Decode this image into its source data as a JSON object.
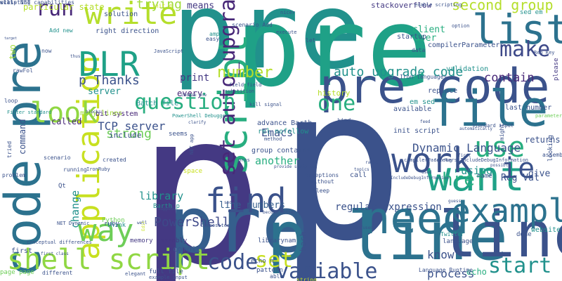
{
  "words": [
    {
      "text": "p",
      "color": "#443983"
    },
    {
      "text": "p",
      "color": "#3b528b"
    },
    {
      "text": "pre",
      "color": "#21918c"
    },
    {
      "text": "pre",
      "color": "#1fa187"
    },
    {
      "text": "pre code",
      "color": "#3b528b"
    },
    {
      "text": "code pre",
      "color": "#2c728e"
    },
    {
      "text": "pre",
      "color": "#355f8d"
    },
    {
      "text": "p line",
      "color": "#2c728e"
    },
    {
      "text": "line",
      "color": "#3b528b"
    },
    {
      "text": "script",
      "color": "#28ae80"
    },
    {
      "text": "file",
      "color": "#2c728e"
    },
    {
      "text": "want",
      "color": "#1fa187"
    },
    {
      "text": "application",
      "color": "#c8e020"
    },
    {
      "text": "need",
      "color": "#2c728e"
    },
    {
      "text": "work",
      "color": "#3b528b"
    },
    {
      "text": "example",
      "color": "#2c728e"
    },
    {
      "text": "list",
      "color": "#2c728e"
    },
    {
      "text": "DLR",
      "color": "#1fa187"
    },
    {
      "text": "write",
      "color": "#b5de2b"
    },
    {
      "text": "find",
      "color": "#3b528b"
    },
    {
      "text": "use",
      "color": "#28ae80"
    },
    {
      "text": "one",
      "color": "#28ae80"
    },
    {
      "text": "way",
      "color": "#6ece58"
    },
    {
      "text": "look",
      "color": "#90d743"
    },
    {
      "text": "shell script",
      "color": "#90d743"
    },
    {
      "text": "set auto_upgrade",
      "color": "#482878"
    },
    {
      "text": "question",
      "color": "#28ae80"
    },
    {
      "text": "make",
      "color": "#3e4989"
    },
    {
      "text": "run",
      "color": "#482878"
    },
    {
      "text": "code",
      "color": "#3b528b"
    },
    {
      "text": "set",
      "color": "#c8e020"
    },
    {
      "text": "variable",
      "color": "#3b528b"
    },
    {
      "text": "start",
      "color": "#21918c"
    },
    {
      "text": "ie",
      "color": "#3b528b"
    },
    {
      "text": "href",
      "color": "#28ae80"
    },
    {
      "text": "number",
      "color": "#b5de2b"
    },
    {
      "text": "auto_upgrade code",
      "color": "#21918c"
    },
    {
      "text": "second group",
      "color": "#b5de2b"
    },
    {
      "text": "p Thanks",
      "color": "#3b528b"
    },
    {
      "text": "trying",
      "color": "#a0da39"
    },
    {
      "text": "PowerShell",
      "color": "#3e4989"
    },
    {
      "text": "know",
      "color": "#3b528b"
    },
    {
      "text": "strong",
      "color": "#6ece58"
    },
    {
      "text": "contain",
      "color": "#482878"
    },
    {
      "text": "TCP server",
      "color": "#3b528b"
    },
    {
      "text": "Emacs",
      "color": "#3b528b"
    },
    {
      "text": "Dynamic Language",
      "color": "#3b528b"
    },
    {
      "text": "regular expression",
      "color": "#3b528b"
    },
    {
      "text": "line numbers",
      "color": "#355f8d"
    },
    {
      "text": "another",
      "color": "#28ae80"
    },
    {
      "text": "using",
      "color": "#21918c"
    },
    {
      "text": "library",
      "color": "#21918c"
    },
    {
      "text": "change",
      "color": "#21918c"
    },
    {
      "text": "print",
      "color": "#443983"
    },
    {
      "text": "means",
      "color": "#443983"
    },
    {
      "text": "client",
      "color": "#28ae80"
    },
    {
      "text": "user",
      "color": "#28ae80"
    },
    {
      "text": "stackoverflow",
      "color": "#443983"
    },
    {
      "text": "Reg Val",
      "color": "#3b528b"
    },
    {
      "text": "give",
      "color": "#3b528b"
    },
    {
      "text": "returns",
      "color": "#3b528b"
    },
    {
      "text": "compile",
      "color": "#3b528b"
    },
    {
      "text": "process",
      "color": "#3b528b"
    },
    {
      "text": "echo",
      "color": "#28ae80"
    },
    {
      "text": "bash",
      "color": "#3b528b"
    },
    {
      "text": "solution",
      "color": "#3b528b"
    },
    {
      "text": "right direction",
      "color": "#3b528b"
    },
    {
      "text": "particular state",
      "color": "#b5de2b"
    },
    {
      "text": "two",
      "color": "#a0da39"
    },
    {
      "text": "server",
      "color": "#21918c"
    },
    {
      "text": "every",
      "color": "#482878"
    },
    {
      "text": "include",
      "color": "#3b528b"
    },
    {
      "text": "called",
      "color": "#482878"
    },
    {
      "text": "command",
      "color": "#3b528b"
    },
    {
      "text": "bit system",
      "color": "#482878"
    },
    {
      "text": "Batch file",
      "color": "#21918c"
    },
    {
      "text": "many lines",
      "color": "#a0da39"
    },
    {
      "text": "history",
      "color": "#b5de2b"
    },
    {
      "text": "replace",
      "color": "#3b528b"
    },
    {
      "text": "em sed",
      "color": "#21918c"
    },
    {
      "text": "available",
      "color": "#3b528b"
    },
    {
      "text": "last number",
      "color": "#3b528b"
    },
    {
      "text": "validation",
      "color": "#21918c"
    },
    {
      "text": "compilerParameters",
      "color": "#3b528b"
    },
    {
      "text": "init script",
      "color": "#3b528b"
    },
    {
      "text": "data",
      "color": "#3b528b"
    },
    {
      "text": "startup",
      "color": "#3b528b"
    },
    {
      "text": "group contains",
      "color": "#3b528b"
    },
    {
      "text": "call",
      "color": "#3b528b"
    },
    {
      "text": "rel nofollow",
      "color": "#21918c"
    },
    {
      "text": "advance Barth",
      "color": "#3b528b"
    },
    {
      "text": "seems",
      "color": "#3b528b"
    },
    {
      "text": "space",
      "color": "#c8e020"
    },
    {
      "text": "Barth p",
      "color": "#21918c"
    },
    {
      "text": "memory assembly",
      "color": "#443983"
    },
    {
      "text": "think",
      "color": "#21918c"
    },
    {
      "text": "ruby",
      "color": "#3b528b"
    },
    {
      "text": "Qt",
      "color": "#3b528b"
    },
    {
      "text": "Python",
      "color": "#6ece58"
    },
    {
      "text": "first",
      "color": "#3b528b"
    },
    {
      "text": "full file",
      "color": "#3b528b"
    },
    {
      "text": "echo n",
      "color": "#3b528b"
    },
    {
      "text": "pattern",
      "color": "#3b528b"
    },
    {
      "text": "librarynam",
      "color": "#3b528b"
    },
    {
      "text": "language",
      "color": "#3b528b"
    },
    {
      "text": "name",
      "color": "#3b528b"
    },
    {
      "text": "done",
      "color": "#3b528b"
    },
    {
      "text": "website",
      "color": "#21918c"
    },
    {
      "text": "please",
      "color": "#443983"
    },
    {
      "text": "looking",
      "color": "#3b528b"
    },
    {
      "text": "Add new",
      "color": "#21918c"
    },
    {
      "text": "scenario Add",
      "color": "#3b528b"
    },
    {
      "text": "easy",
      "color": "#3b528b"
    },
    {
      "text": "amp",
      "color": "#21918c"
    },
    {
      "text": "without",
      "color": "#3b528b"
    },
    {
      "text": "exceptions",
      "color": "#3b528b"
    },
    {
      "text": "sleep",
      "color": "#3b528b"
    },
    {
      "text": "created",
      "color": "#3b528b"
    },
    {
      "text": "running",
      "color": "#3b528b"
    },
    {
      "text": "scenario",
      "color": "#3b528b"
    },
    {
      "text": "now",
      "color": "#3b528b"
    },
    {
      "text": "rawFol",
      "color": "#3b528b"
    },
    {
      "text": "loop",
      "color": "#3b528b"
    },
    {
      "text": "problem",
      "color": "#3b528b"
    },
    {
      "text": "tried",
      "color": "#3b528b"
    },
    {
      "text": "page page",
      "color": "#6ece58"
    },
    {
      "text": "different",
      "color": "#3b528b"
    },
    {
      "text": "elegant",
      "color": "#3b528b"
    },
    {
      "text": "example input",
      "color": "#3b528b"
    },
    {
      "text": "able",
      "color": "#3b528b"
    },
    {
      "text": "string",
      "color": "#c8e020"
    },
    {
      "text": "kind",
      "color": "#3b528b"
    },
    {
      "text": "Twitter",
      "color": "#21918c"
    },
    {
      "text": "Language Runtime",
      "color": "#3b528b"
    },
    {
      "text": "might",
      "color": "#3b528b"
    },
    {
      "text": "nicer",
      "color": "#3b528b"
    },
    {
      "text": "enable scripting",
      "color": "#3b528b"
    },
    {
      "text": "sed em",
      "color": "#21918c"
    },
    {
      "text": "Reg Key",
      "color": "#3b528b"
    },
    {
      "text": "let",
      "color": "#3b528b"
    },
    {
      "text": "init d",
      "color": "#c8e020"
    },
    {
      "text": "Iron languages",
      "color": "#3b528b"
    },
    {
      "text": "JavaScript",
      "color": "#3b528b"
    },
    {
      "text": "substition",
      "color": "#3b528b"
    },
    {
      "text": "field field",
      "color": "#3b528b"
    },
    {
      "text": "kill signal",
      "color": "#3b528b"
    },
    {
      "text": "PowerShell Debugger",
      "color": "#21918c"
    },
    {
      "text": "Filter standard",
      "color": "#21918c"
    },
    {
      "text": "conceptual differences",
      "color": "#3b528b"
    },
    {
      "text": "first class",
      "color": "#3b528b"
    },
    {
      "text": "NET Dynamic",
      "color": "#3b528b"
    },
    {
      "text": "IronRuby",
      "color": "#3b528b"
    },
    {
      "text": "provide scripting",
      "color": "#3b528b"
    },
    {
      "text": "IncludeDebugInformation",
      "color": "#3b528b"
    },
    {
      "text": "compilerParameters IncludeDebugInformation",
      "color": "#3b528b"
    },
    {
      "text": "Set Reg",
      "color": "#3b528b"
    },
    {
      "text": "assembly",
      "color": "#3b528b"
    },
    {
      "text": "parameter",
      "color": "#6ece58"
    },
    {
      "text": "possible",
      "color": "#3b528b"
    },
    {
      "text": "rather",
      "color": "#3b528b"
    },
    {
      "text": "topics",
      "color": "#3b528b"
    },
    {
      "text": "option",
      "color": "#3b528b"
    },
    {
      "text": "execute",
      "color": "#3b528b"
    },
    {
      "text": "pros",
      "color": "#3b528b"
    },
    {
      "text": "method",
      "color": "#3b528b"
    },
    {
      "text": "feed",
      "color": "#3b528b"
    },
    {
      "text": "standard input",
      "color": "#3b528b"
    },
    {
      "text": "automatically",
      "color": "#3b528b"
    },
    {
      "text": "sed",
      "color": "#3b528b"
    },
    {
      "text": "used",
      "color": "#3b528b"
    },
    {
      "text": "Suppose",
      "color": "#3b528b"
    },
    {
      "text": "NET app",
      "color": "#3b528b"
    },
    {
      "text": "Composites",
      "color": "#3b528b"
    },
    {
      "text": "Edit",
      "color": "#c8e020"
    },
    {
      "text": "well",
      "color": "#3b528b"
    },
    {
      "text": "blocks",
      "color": "#3b528b"
    },
    {
      "text": "target",
      "color": "#3b528b"
    },
    {
      "text": "thus",
      "color": "#3b528b"
    },
    {
      "text": "clarify",
      "color": "#3b528b"
    },
    {
      "text": "choose one",
      "color": "#3b528b"
    },
    {
      "text": "become hotter",
      "color": "#3b528b"
    },
    {
      "text": "guess",
      "color": "#3b528b"
    },
    {
      "text": "confused",
      "color": "#3b528b"
    },
    {
      "text": "first",
      "color": "#3b528b"
    },
    {
      "text": "scripting capabilities",
      "color": "#3b528b"
    },
    {
      "text": "will",
      "color": "#3b528b"
    },
    {
      "text": "class NET",
      "color": "#3b528b"
    }
  ]
}
